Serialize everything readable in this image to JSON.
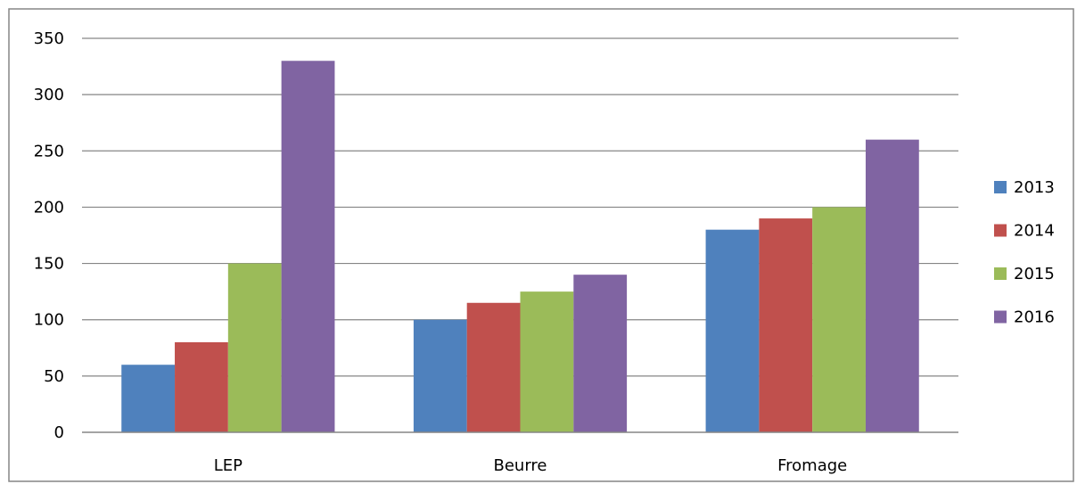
{
  "chart_data": {
    "type": "bar",
    "categories": [
      "LEP",
      "Beurre",
      "Fromage"
    ],
    "series": [
      {
        "name": "2013",
        "color": "#4F81BD",
        "values": [
          60,
          100,
          180
        ]
      },
      {
        "name": "2014",
        "color": "#C0504D",
        "values": [
          80,
          115,
          190
        ]
      },
      {
        "name": "2015",
        "color": "#9BBB59",
        "values": [
          150,
          125,
          200
        ]
      },
      {
        "name": "2016",
        "color": "#8064A2",
        "values": [
          330,
          140,
          260
        ]
      }
    ],
    "ylim": [
      0,
      350
    ],
    "yticks": [
      "0",
      "50",
      "100",
      "150",
      "200",
      "250",
      "300",
      "350"
    ],
    "grid": true,
    "legend_position": "right",
    "gridline_color": "#868686",
    "border_color": "#868686"
  }
}
